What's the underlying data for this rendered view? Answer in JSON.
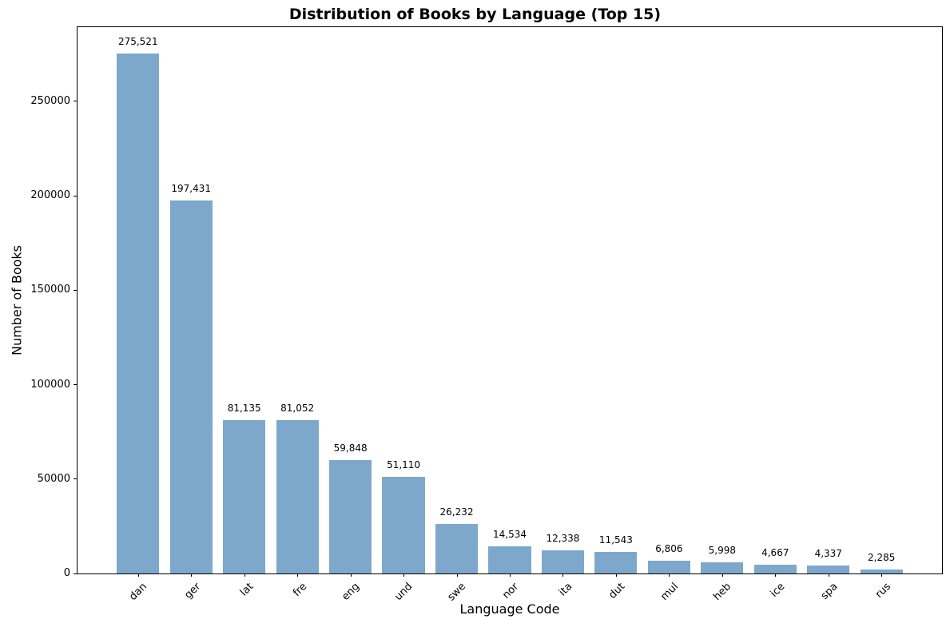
{
  "chart_data": {
    "type": "bar",
    "title": "Distribution of Books by Language (Top 15)",
    "xlabel": "Language Code",
    "ylabel": "Number of Books",
    "categories": [
      "dan",
      "ger",
      "lat",
      "fre",
      "eng",
      "und",
      "swe",
      "nor",
      "ita",
      "dut",
      "mul",
      "heb",
      "ice",
      "spa",
      "rus"
    ],
    "values": [
      275521,
      197431,
      81135,
      81052,
      59848,
      51110,
      26232,
      14534,
      12338,
      11543,
      6806,
      5998,
      4667,
      4337,
      2285
    ],
    "value_labels": [
      "275,521",
      "197,431",
      "81,135",
      "81,052",
      "59,848",
      "51,110",
      "26,232",
      "14,534",
      "12,338",
      "11,543",
      "6,806",
      "5,998",
      "4,667",
      "4,337",
      "2,285"
    ],
    "yticks": [
      0,
      50000,
      100000,
      150000,
      200000,
      250000
    ],
    "ytick_labels": [
      "0",
      "50000",
      "100000",
      "150000",
      "200000",
      "250000"
    ],
    "ylim": [
      0,
      289300
    ],
    "grid": false,
    "legend": null,
    "bar_color": "#7EA8CB",
    "axis_color": "#000000",
    "background_color": "#ffffff",
    "x_tick_rotation_deg": 45
  }
}
